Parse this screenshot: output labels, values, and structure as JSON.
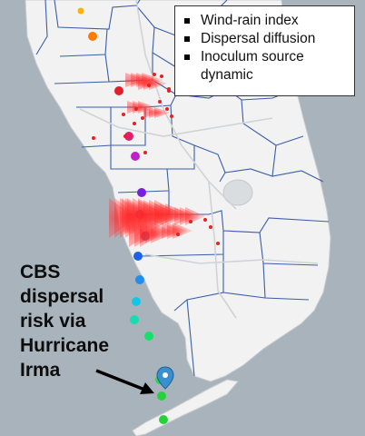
{
  "legend": {
    "items": [
      {
        "label": "Wind-rain index"
      },
      {
        "label": "Dispersal diffusion"
      },
      {
        "label": "Inoculum source dynamic"
      }
    ]
  },
  "callout": {
    "lines": [
      "CBS",
      "dispersal",
      "risk via",
      "Hurricane",
      "Irma"
    ]
  },
  "colors": {
    "water": "#a9b3bc",
    "land": "#f1f1f1",
    "county_border": "#3b5ea8",
    "dispersal_cone": "#ff3b3b",
    "marker": "#3a8fd0",
    "arrow": "#000000"
  },
  "icons": [
    "location-pin-icon",
    "arrow-icon"
  ],
  "hurricane_track_colors": [
    "#ffb000",
    "#ff7a00",
    "#e31e2a",
    "#e0206e",
    "#c020c8",
    "#7a1ee0",
    "#1c20e6",
    "#1a40e0",
    "#1b62e8",
    "#1e8ef0",
    "#10c8e6",
    "#16dcb0",
    "#14e06a",
    "#2bd84a",
    "#26d23c"
  ]
}
